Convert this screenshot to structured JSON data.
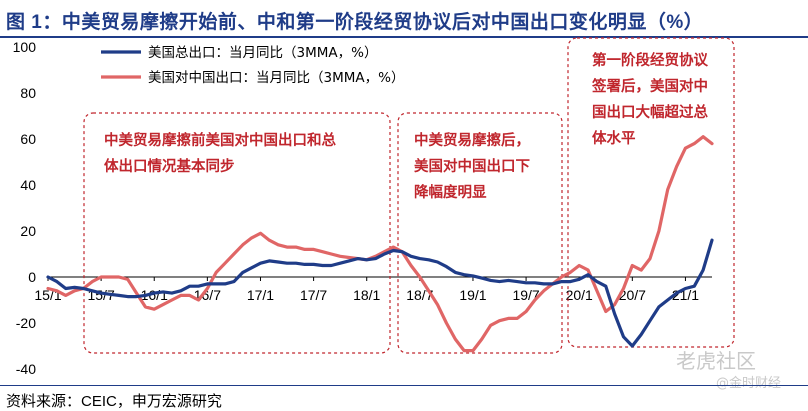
{
  "title": "图 1：中美贸易摩擦开始前、中和第一阶段经贸协议后对中国出口变化明显（%）",
  "source": "资料来源：CEIC，申万宏源研究",
  "watermarks": {
    "main": "老虎社区",
    "sub": "@金时财经"
  },
  "chart_data": {
    "type": "line",
    "ylim": [
      -40,
      100
    ],
    "yticks": [
      "100",
      "80",
      "60",
      "40",
      "20",
      "0",
      "-20",
      "-40"
    ],
    "ytick_values": [
      100,
      80,
      60,
      40,
      20,
      0,
      -20,
      -40
    ],
    "xticks": [
      "15/1",
      "15/7",
      "16/1",
      "16/7",
      "17/1",
      "17/7",
      "18/1",
      "18/7",
      "19/1",
      "19/7",
      "20/1",
      "20/7",
      "21/1"
    ],
    "xtick_index": [
      0,
      6,
      12,
      18,
      24,
      30,
      36,
      42,
      48,
      54,
      60,
      66,
      72
    ],
    "colors": {
      "total": "#1f3c88",
      "china": "#e06666",
      "annotation": "#c0262d"
    },
    "series": [
      {
        "name": "美国总出口：当月同比（3MMA，%）",
        "values": [
          0,
          -2,
          -5,
          -4.5,
          -5,
          -6,
          -7,
          -7.5,
          -8,
          -8.5,
          -8.5,
          -8,
          -7,
          -6.5,
          -7,
          -6,
          -4,
          -4,
          -3,
          -3,
          -3,
          -2,
          2,
          4,
          6,
          7,
          6.5,
          6,
          6,
          5.5,
          5.5,
          5,
          5,
          6,
          7,
          8,
          7.5,
          8,
          10,
          11.5,
          11,
          9,
          8,
          7.5,
          6.5,
          4.5,
          2,
          1,
          0.5,
          -0.5,
          -1.5,
          -2,
          -1.5,
          -2,
          -2.5,
          -2.5,
          -3,
          -3,
          -2,
          -2,
          -1,
          1,
          -2,
          -4,
          -16,
          -26,
          -30,
          -25,
          -19,
          -13,
          -10,
          -7,
          -5,
          -4,
          3,
          16
        ]
      },
      {
        "name": "美国对中国出口：当月同比（3MMA，%）",
        "values": [
          -5,
          -6,
          -8,
          -6,
          -5,
          -2,
          0,
          0,
          0,
          -1,
          -7,
          -13,
          -14,
          -12,
          -10,
          -8,
          -8,
          -10,
          -5,
          2,
          6,
          10,
          14,
          17,
          19,
          16,
          14,
          13,
          13,
          12,
          12,
          11,
          10,
          9,
          8.5,
          8,
          7.5,
          9,
          11,
          13,
          11,
          5,
          0,
          -6,
          -12,
          -20,
          -27,
          -32,
          -32,
          -27,
          -21,
          -19,
          -18,
          -18,
          -15,
          -10,
          -6,
          -3,
          0,
          2,
          5,
          3,
          -6,
          -15,
          -12,
          -5,
          5,
          3,
          8,
          20,
          38,
          48,
          56,
          58,
          61,
          58
        ]
      }
    ],
    "legend": [
      "美国总出口：当月同比（3MMA，%）",
      "美国对中国出口：当月同比（3MMA，%）"
    ],
    "annotations": [
      {
        "lines": [
          "中美贸易摩擦前美国对中国出口和总",
          "体出口情况基本同步"
        ]
      },
      {
        "lines": [
          "中美贸易摩擦后，",
          "美国对中国出口下",
          "降幅度明显"
        ]
      },
      {
        "lines": [
          "第一阶段经贸协议",
          "签署后，美国对中",
          "国出口大幅超过总",
          "体水平"
        ]
      }
    ]
  }
}
